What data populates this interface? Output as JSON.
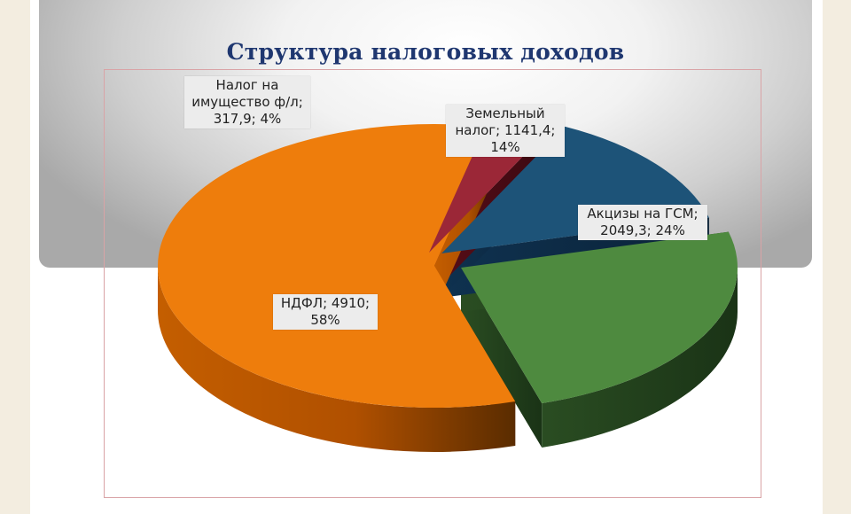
{
  "chart_data": {
    "type": "pie",
    "title": "Структура налоговых доходов",
    "slices": [
      {
        "name": "НДФЛ",
        "value": 4910,
        "percent": 58,
        "color": "#ee7d0c",
        "label_lines": [
          "НДФЛ; 4910;",
          "58%"
        ]
      },
      {
        "name": "Налог на имущество ф/л",
        "value": 317.9,
        "percent": 4,
        "color": "#9b2737",
        "label_lines": [
          "Налог на",
          "имущество ф/л;",
          "317,9; 4%"
        ]
      },
      {
        "name": "Земельный налог",
        "value": 1141.4,
        "percent": 14,
        "color": "#1d5378",
        "label_lines": [
          "Земельный",
          "налог; 1141,4;",
          "14%"
        ]
      },
      {
        "name": "Акцизы на ГСМ",
        "value": 2049.3,
        "percent": 24,
        "color": "#4e8a3f",
        "label_lines": [
          "Акцизы на ГСМ;",
          "2049,3; 24%"
        ]
      }
    ],
    "style": "3d-exploded-pie",
    "legend": "none"
  }
}
